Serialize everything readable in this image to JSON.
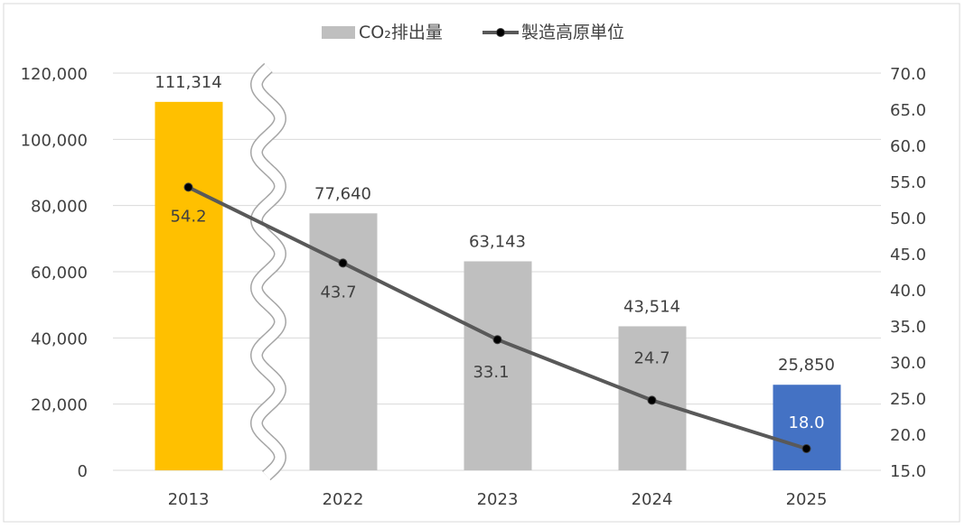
{
  "chart_data": {
    "type": "bar+line",
    "categories": [
      "2013",
      "2022",
      "2023",
      "2024",
      "2025"
    ],
    "axis_break": "between 2013 and 2022",
    "series": [
      {
        "name": "CO₂排出量",
        "type": "bar",
        "axis": "left",
        "values": [
          111314,
          77640,
          63143,
          43514,
          25850
        ],
        "labels": [
          "111,314",
          "77,640",
          "63,143",
          "43,514",
          "25,850"
        ],
        "colors": [
          "#FFC000",
          "#BFBFBF",
          "#BFBFBF",
          "#BFBFBF",
          "#4472C4"
        ]
      },
      {
        "name": "製造高原単位",
        "type": "line",
        "axis": "right",
        "values": [
          54.2,
          43.7,
          33.1,
          24.7,
          18.0
        ],
        "labels": [
          "54.2",
          "43.7",
          "33.1",
          "24.7",
          "18.0"
        ],
        "color": "#595959"
      }
    ],
    "y_left": {
      "lim": [
        0,
        120000
      ],
      "ticks": [
        "0",
        "20,000",
        "40,000",
        "60,000",
        "80,000",
        "100,000",
        "120,000"
      ]
    },
    "y_right": {
      "lim": [
        15,
        70
      ],
      "ticks": [
        "15.0",
        "20.0",
        "25.0",
        "30.0",
        "35.0",
        "40.0",
        "45.0",
        "50.0",
        "55.0",
        "60.0",
        "65.0",
        "70.0"
      ]
    },
    "grid": true,
    "legend_position": "top"
  }
}
